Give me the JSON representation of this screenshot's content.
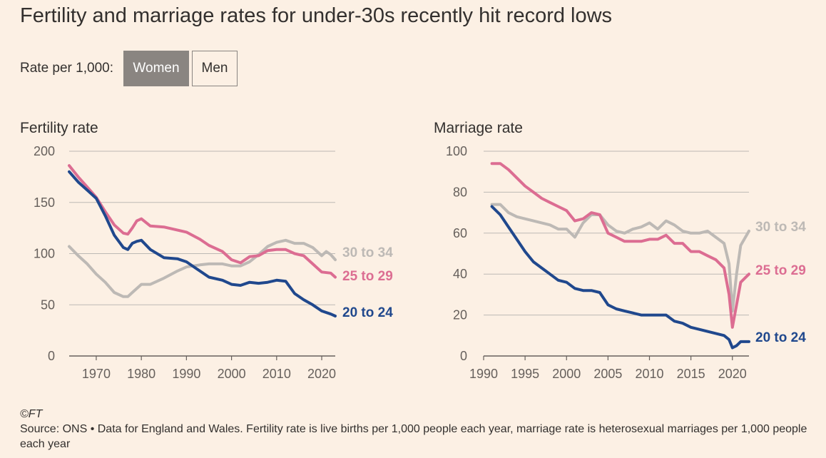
{
  "title": "Fertility and marriage rates for under-30s recently hit record lows",
  "controls": {
    "label": "Rate per 1,000:",
    "options": [
      "Women",
      "Men"
    ],
    "selected": "Women"
  },
  "colors": {
    "c2024": "#20488d",
    "c2529": "#dc6d92",
    "c3034": "#bdb9b5",
    "grid": "#bdb9b5",
    "axis": "#66605c"
  },
  "footer": {
    "copyright": "©FT",
    "source": "Source: ONS • Data for England and Wales. Fertility rate is live births per 1,000 people each year, marriage rate is heterosexual marriages per 1,000 people each year"
  },
  "chart_data": [
    {
      "type": "line",
      "title": "Fertility rate",
      "xlim": [
        1964,
        2023
      ],
      "ylim": [
        0,
        200
      ],
      "xticks": [
        1970,
        1980,
        1990,
        2000,
        2010,
        2020
      ],
      "yticks": [
        0,
        50,
        100,
        150,
        200
      ],
      "series": [
        {
          "name": "30 to 34",
          "color": "#bdb9b5",
          "x": [
            1964,
            1966,
            1968,
            1970,
            1972,
            1974,
            1976,
            1977,
            1978,
            1980,
            1982,
            1985,
            1988,
            1990,
            1993,
            1995,
            1998,
            2000,
            2002,
            2004,
            2006,
            2008,
            2010,
            2012,
            2014,
            2016,
            2018,
            2020,
            2021,
            2022,
            2023
          ],
          "y": [
            107,
            98,
            90,
            80,
            72,
            62,
            58,
            58,
            62,
            70,
            70,
            76,
            83,
            87,
            89,
            90,
            90,
            88,
            88,
            92,
            99,
            107,
            111,
            113,
            110,
            110,
            106,
            98,
            102,
            99,
            94
          ]
        },
        {
          "name": "25 to 29",
          "color": "#dc6d92",
          "x": [
            1964,
            1966,
            1968,
            1970,
            1972,
            1974,
            1976,
            1977,
            1978,
            1979,
            1980,
            1982,
            1985,
            1987,
            1990,
            1993,
            1995,
            1998,
            2000,
            2002,
            2004,
            2006,
            2008,
            2010,
            2012,
            2014,
            2016,
            2018,
            2020,
            2022,
            2023
          ],
          "y": [
            186,
            175,
            165,
            155,
            141,
            128,
            120,
            119,
            125,
            132,
            134,
            127,
            126,
            124,
            121,
            114,
            108,
            102,
            94,
            91,
            97,
            98,
            103,
            104,
            104,
            100,
            98,
            90,
            82,
            81,
            77
          ]
        },
        {
          "name": "20 to 24",
          "color": "#20488d",
          "x": [
            1964,
            1966,
            1968,
            1970,
            1972,
            1974,
            1976,
            1977,
            1978,
            1979,
            1980,
            1982,
            1985,
            1988,
            1990,
            1992,
            1995,
            1998,
            2000,
            2002,
            2004,
            2006,
            2008,
            2010,
            2012,
            2014,
            2016,
            2018,
            2020,
            2022,
            2023
          ],
          "y": [
            180,
            170,
            162,
            154,
            137,
            118,
            106,
            104,
            110,
            112,
            113,
            104,
            96,
            95,
            92,
            86,
            77,
            74,
            70,
            69,
            72,
            71,
            72,
            74,
            73,
            61,
            55,
            50,
            44,
            41,
            39
          ]
        }
      ]
    },
    {
      "type": "line",
      "title": "Marriage rate",
      "xlim": [
        1990,
        2022
      ],
      "ylim": [
        0,
        100
      ],
      "xticks": [
        1990,
        1995,
        2000,
        2005,
        2010,
        2015,
        2020
      ],
      "yticks": [
        0,
        20,
        40,
        60,
        80,
        100
      ],
      "series": [
        {
          "name": "30 to 34",
          "color": "#bdb9b5",
          "x": [
            1991,
            1992,
            1993,
            1994,
            1995,
            1996,
            1997,
            1998,
            1999,
            2000,
            2001,
            2002,
            2003,
            2004,
            2005,
            2006,
            2007,
            2008,
            2009,
            2010,
            2011,
            2012,
            2013,
            2014,
            2015,
            2016,
            2017,
            2018,
            2019,
            2019.6,
            2020,
            2020.5,
            2021,
            2022
          ],
          "y": [
            74,
            74,
            70,
            68,
            67,
            66,
            65,
            64,
            62,
            62,
            58,
            65,
            69,
            69,
            64,
            61,
            60,
            62,
            63,
            65,
            62,
            66,
            64,
            61,
            60,
            60,
            61,
            58,
            55,
            45,
            22,
            40,
            54,
            61
          ]
        },
        {
          "name": "25 to 29",
          "color": "#dc6d92",
          "x": [
            1991,
            1992,
            1993,
            1994,
            1995,
            1996,
            1997,
            1998,
            1999,
            2000,
            2001,
            2002,
            2003,
            2004,
            2005,
            2006,
            2007,
            2008,
            2009,
            2010,
            2011,
            2012,
            2013,
            2014,
            2015,
            2016,
            2017,
            2018,
            2019,
            2019.6,
            2020,
            2020.5,
            2021,
            2022
          ],
          "y": [
            94,
            94,
            91,
            87,
            83,
            80,
            77,
            75,
            73,
            71,
            66,
            67,
            70,
            69,
            60,
            58,
            56,
            56,
            56,
            57,
            57,
            59,
            55,
            55,
            51,
            51,
            49,
            47,
            43,
            30,
            14,
            25,
            36,
            40
          ]
        },
        {
          "name": "20 to 24",
          "color": "#20488d",
          "x": [
            1991,
            1992,
            1993,
            1994,
            1995,
            1996,
            1997,
            1998,
            1999,
            2000,
            2001,
            2002,
            2003,
            2004,
            2005,
            2006,
            2007,
            2008,
            2009,
            2010,
            2011,
            2012,
            2013,
            2014,
            2015,
            2016,
            2017,
            2018,
            2019,
            2019.6,
            2020,
            2020.5,
            2021,
            2022
          ],
          "y": [
            73,
            69,
            63,
            57,
            51,
            46,
            43,
            40,
            37,
            36,
            33,
            32,
            32,
            31,
            25,
            23,
            22,
            21,
            20,
            20,
            20,
            20,
            17,
            16,
            14,
            13,
            12,
            11,
            10,
            8,
            4,
            5,
            7,
            7
          ]
        }
      ]
    }
  ]
}
